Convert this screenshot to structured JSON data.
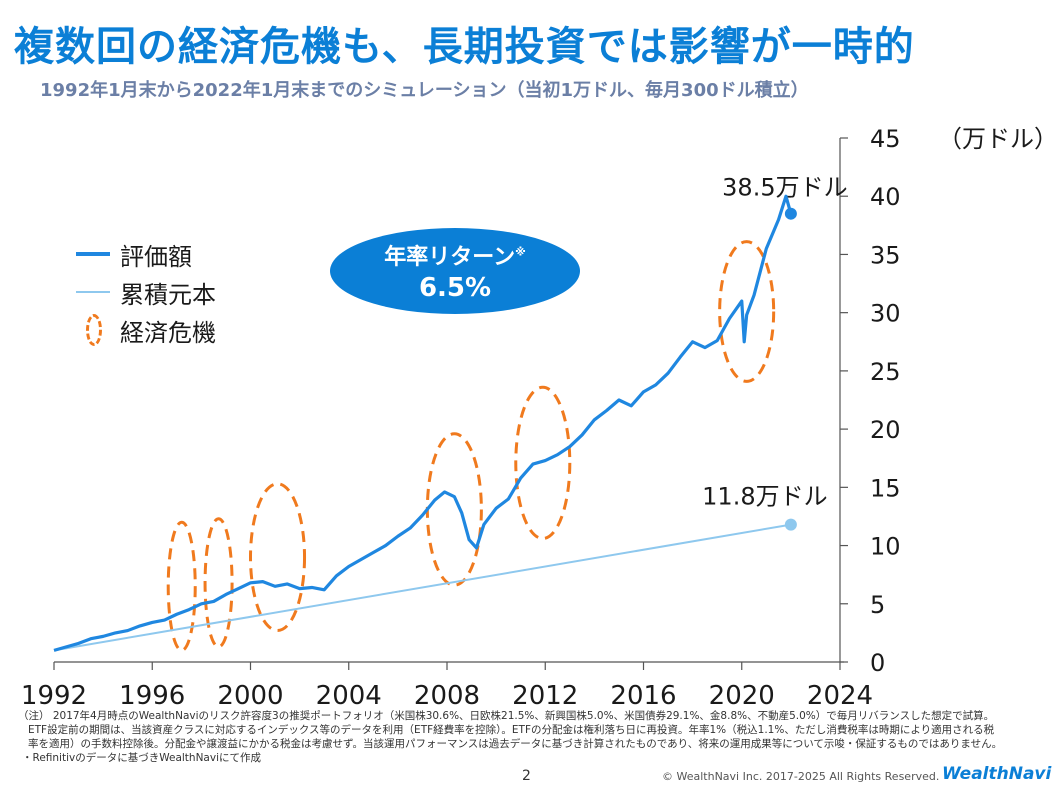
{
  "header": {
    "title": "複数回の経済危機も、長期投資では影響が一時的",
    "subtitle": "1992年1月末から2022年1月末までのシミュレーション（当初1万ドル、毎月300ドル積立）"
  },
  "legend": {
    "evaluation": "評価額",
    "principal": "累積元本",
    "crisis": "経済危機"
  },
  "badge": {
    "line1": "年率リターン",
    "mark": "※",
    "line2": "6.5%"
  },
  "colors": {
    "evaluation": "#1f87e0",
    "principal": "#8ec8ee",
    "crisis": "#f07a1e",
    "brand": "#0b7fd6"
  },
  "chart_data": {
    "type": "line",
    "ylabel": "（万ドル）",
    "ylim": [
      0,
      45
    ],
    "xlim": [
      1992,
      2024
    ],
    "y_ticks": [
      "0",
      "5",
      "10",
      "15",
      "20",
      "25",
      "30",
      "35",
      "40",
      "45"
    ],
    "x_ticks": [
      "1992",
      "1996",
      "2000",
      "2004",
      "2008",
      "2012",
      "2016",
      "2020",
      "2024"
    ],
    "series": [
      {
        "name": "評価額",
        "x": [
          1992.0,
          1992.5,
          1993.0,
          1993.5,
          1994.0,
          1994.5,
          1995.0,
          1995.5,
          1996.0,
          1996.5,
          1997.0,
          1997.5,
          1998.0,
          1998.5,
          1999.0,
          1999.5,
          2000.0,
          2000.5,
          2001.0,
          2001.5,
          2002.0,
          2002.5,
          2003.0,
          2003.5,
          2004.0,
          2004.5,
          2005.0,
          2005.5,
          2006.0,
          2006.5,
          2007.0,
          2007.5,
          2007.9,
          2008.3,
          2008.6,
          2008.9,
          2009.2,
          2009.5,
          2010.0,
          2010.5,
          2011.0,
          2011.5,
          2012.0,
          2012.5,
          2013.0,
          2013.5,
          2014.0,
          2014.5,
          2015.0,
          2015.5,
          2016.0,
          2016.5,
          2017.0,
          2017.5,
          2018.0,
          2018.5,
          2019.0,
          2019.5,
          2020.0,
          2020.1,
          2020.2,
          2020.5,
          2021.0,
          2021.5,
          2021.8,
          2022.0
        ],
        "values": [
          1.0,
          1.3,
          1.6,
          2.0,
          2.2,
          2.5,
          2.7,
          3.1,
          3.4,
          3.6,
          4.1,
          4.5,
          5.0,
          5.2,
          5.8,
          6.3,
          6.8,
          6.9,
          6.5,
          6.7,
          6.3,
          6.4,
          6.2,
          7.4,
          8.2,
          8.8,
          9.4,
          10.0,
          10.8,
          11.5,
          12.6,
          13.9,
          14.6,
          14.2,
          12.8,
          10.5,
          9.8,
          11.8,
          13.2,
          14.0,
          15.8,
          17.0,
          17.3,
          17.8,
          18.5,
          19.5,
          20.8,
          21.6,
          22.5,
          22.0,
          23.2,
          23.8,
          24.8,
          26.2,
          27.5,
          27.0,
          27.6,
          29.5,
          31.0,
          27.5,
          29.8,
          31.5,
          35.5,
          38.0,
          40.0,
          38.5
        ],
        "end_label": "38.5万ドル"
      },
      {
        "name": "累積元本",
        "x": [
          1992.0,
          2022.0
        ],
        "values": [
          1.0,
          11.8
        ],
        "end_label": "11.8万ドル"
      }
    ],
    "crisis_markers": [
      {
        "x": 1997.2,
        "y": 6.5,
        "rx_years": 0.55,
        "ry_units": 5.5
      },
      {
        "x": 1998.7,
        "y": 6.8,
        "rx_years": 0.55,
        "ry_units": 5.5
      },
      {
        "x": 2001.1,
        "y": 9.0,
        "rx_years": 1.1,
        "ry_units": 6.3
      },
      {
        "x": 2008.3,
        "y": 13.1,
        "rx_years": 1.1,
        "ry_units": 6.5
      },
      {
        "x": 2011.9,
        "y": 17.1,
        "rx_years": 1.1,
        "ry_units": 6.5
      },
      {
        "x": 2020.2,
        "y": 30.1,
        "rx_years": 1.1,
        "ry_units": 6.0
      }
    ]
  },
  "notes": {
    "line1": "（注） 2017年4月時点のWealthNaviのリスク許容度3の推奨ポートフォリオ（米国株30.6%、日欧株21.5%、新興国株5.0%、米国債券29.1%、金8.8%、不動産5.0%）で毎月リバランスした想定で試算。",
    "line2": "ETF設定前の期間は、当該資産クラスに対応するインデックス等のデータを利用（ETF経費率を控除）。ETFの分配金は権利落ち日に再投資。年率1%（税込1.1%、ただし消費税率は時期により適用される税",
    "line3": "率を適用）の手数料控除後。分配金や譲渡益にかかる税金は考慮せず。当該運用パフォーマンスは過去データに基づき計算されたものであり、将来の運用成果等について示唆・保証するものではありません。",
    "line4": "・Refinitivのデータに基づきWealthNaviにて作成"
  },
  "footer": {
    "page": "2",
    "copyright": "© WealthNavi Inc. 2017-2025 All Rights Reserved.",
    "logo": "WealthNavi"
  }
}
